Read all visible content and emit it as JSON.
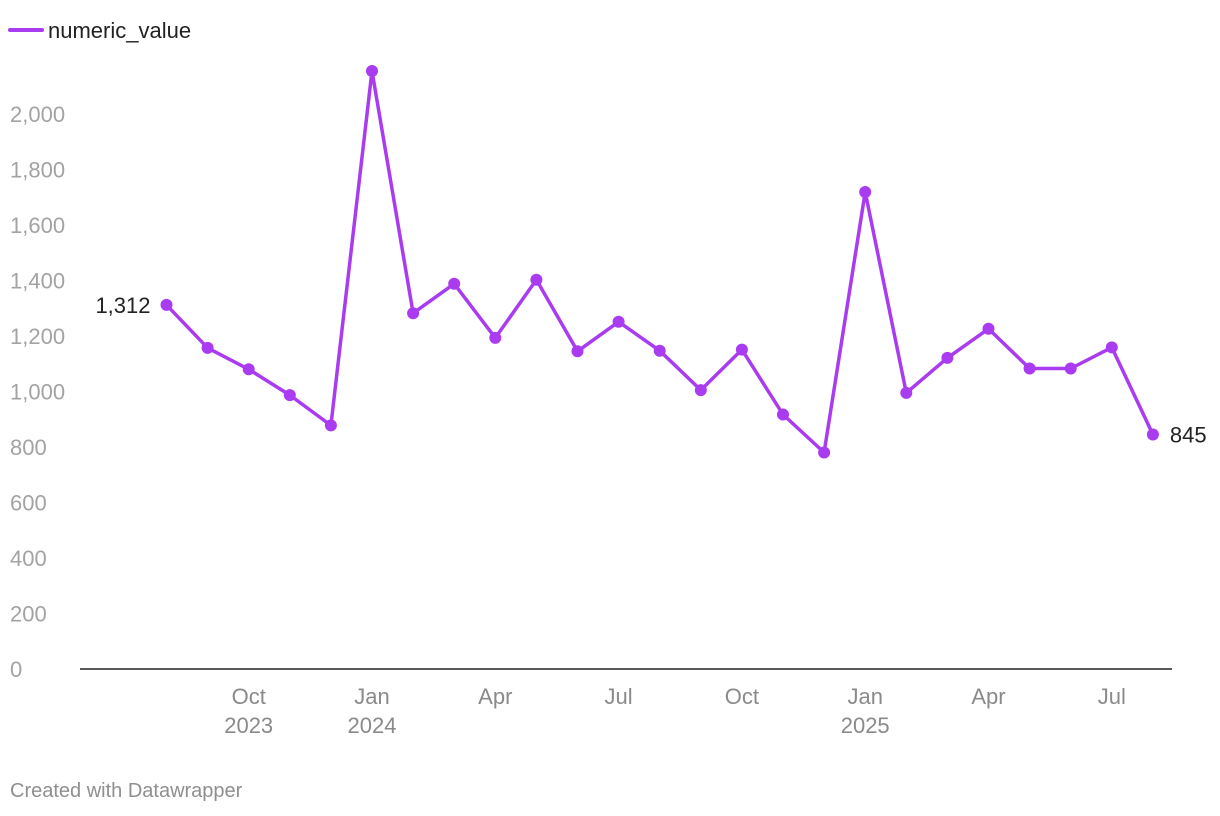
{
  "chart_data": {
    "type": "line",
    "series": [
      {
        "name": "numeric_value",
        "color": "#a93cf0",
        "x": [
          "2023-08",
          "2023-09",
          "2023-10",
          "2023-11",
          "2023-12",
          "2024-01",
          "2024-02",
          "2024-03",
          "2024-04",
          "2024-05",
          "2024-06",
          "2024-07",
          "2024-08",
          "2024-09",
          "2024-10",
          "2024-11",
          "2024-12",
          "2025-01",
          "2025-02",
          "2025-03",
          "2025-04",
          "2025-05",
          "2025-06",
          "2025-07",
          "2025-08"
        ],
        "values": [
          1312,
          1157,
          1080,
          987,
          878,
          2155,
          1282,
          1388,
          1193,
          1403,
          1145,
          1251,
          1147,
          1005,
          1151,
          917,
          780,
          1719,
          995,
          1121,
          1226,
          1083,
          1083,
          1159,
          845
        ]
      }
    ],
    "ylim": [
      0,
      2155
    ],
    "yticks": [
      "0",
      "200",
      "400",
      "600",
      "800",
      "1,000",
      "1,200",
      "1,400",
      "1,600",
      "1,800",
      "2,000"
    ],
    "xticks": [
      {
        "month": "2023-10",
        "label": "Oct",
        "label2": "2023"
      },
      {
        "month": "2024-01",
        "label": "Jan",
        "label2": "2024"
      },
      {
        "month": "2024-04",
        "label": "Apr",
        "label2": ""
      },
      {
        "month": "2024-07",
        "label": "Jul",
        "label2": ""
      },
      {
        "month": "2024-10",
        "label": "Oct",
        "label2": ""
      },
      {
        "month": "2025-01",
        "label": "Jan",
        "label2": "2025"
      },
      {
        "month": "2025-04",
        "label": "Apr",
        "label2": ""
      },
      {
        "month": "2025-07",
        "label": "Jul",
        "label2": ""
      }
    ],
    "data_labels": [
      {
        "x": "2023-08",
        "text": "1,312"
      },
      {
        "x": "2025-08",
        "text": "845"
      }
    ],
    "legend": "top-left",
    "grid": false
  },
  "footer": {
    "note": "Created with Datawrapper"
  }
}
